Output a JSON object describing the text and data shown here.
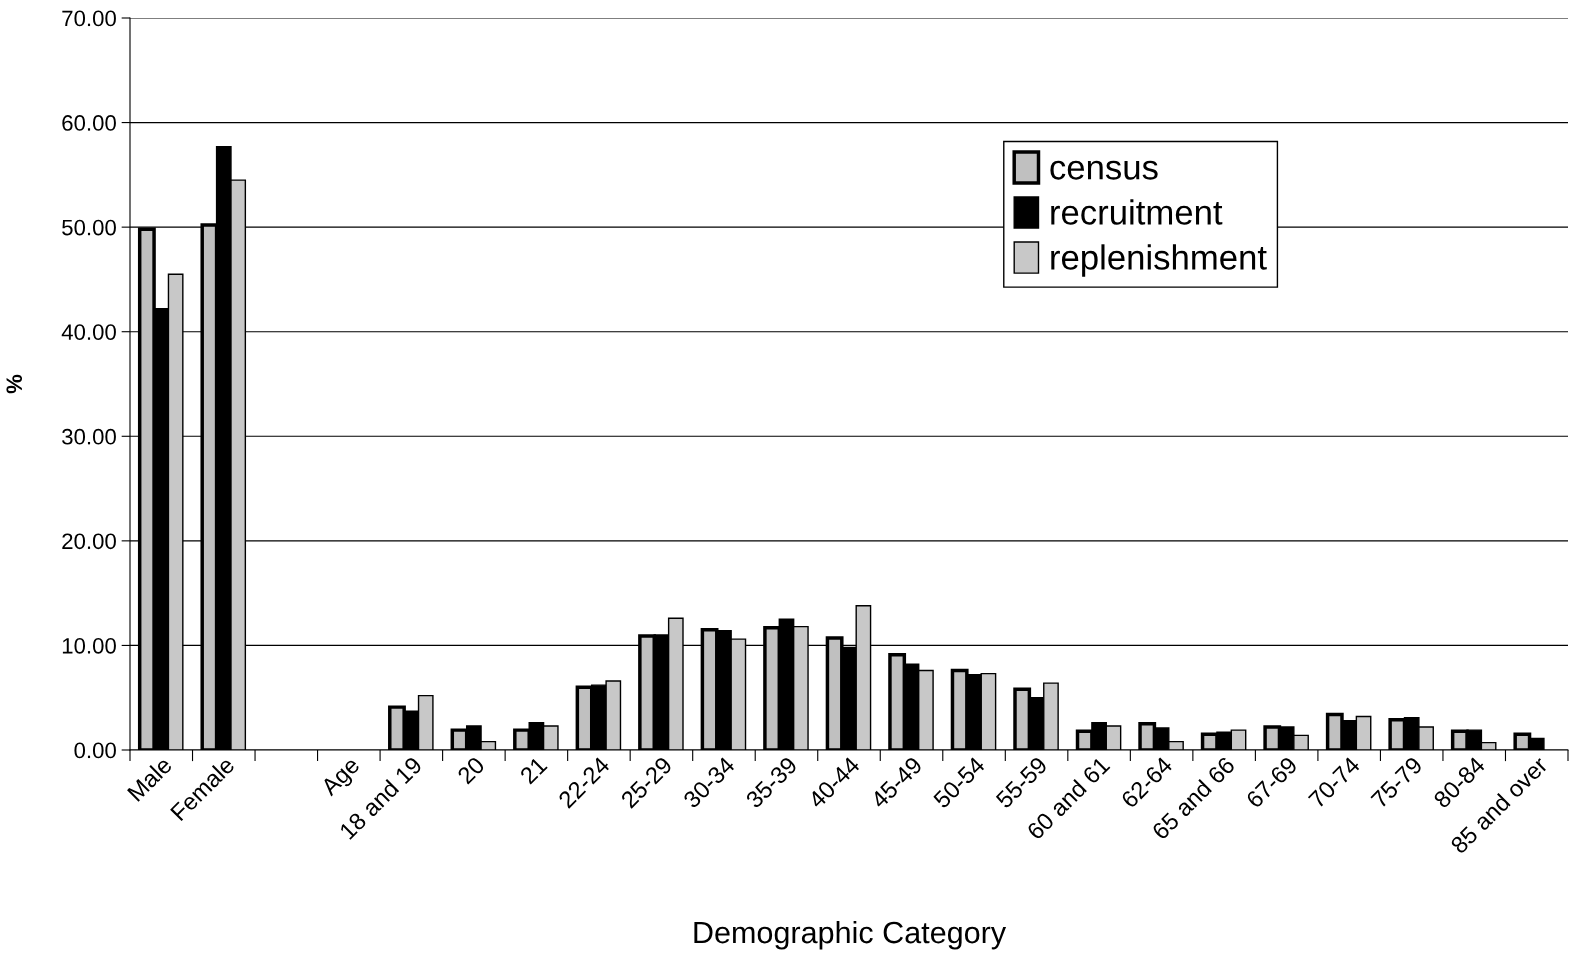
{
  "chart_data": {
    "type": "bar",
    "xlabel": "Demographic Category",
    "ylabel": "%",
    "categories": [
      "Male",
      "Female",
      null,
      "Age",
      "18 and 19",
      "20",
      "21",
      "22-24",
      "25-29",
      "30-34",
      "35-39",
      "40-44",
      "45-49",
      "50-54",
      "55-59",
      "60 and 61",
      "62-64",
      "65 and 66",
      "67-69",
      "70-74",
      "75-79",
      "80-84",
      "85 and over"
    ],
    "series": [
      {
        "name": "census",
        "color": "#c0c0c0",
        "values": [
          49.8,
          50.2,
          null,
          null,
          4.1,
          1.9,
          1.9,
          6.0,
          10.9,
          11.5,
          11.7,
          10.7,
          9.1,
          7.6,
          5.8,
          1.8,
          2.5,
          1.5,
          2.2,
          3.4,
          2.9,
          1.8,
          1.5
        ]
      },
      {
        "name": "recruitment",
        "color": "#000000",
        "values": [
          42.2,
          57.7,
          null,
          null,
          3.7,
          2.3,
          2.6,
          6.2,
          11.0,
          11.4,
          12.5,
          9.8,
          8.2,
          7.2,
          5.0,
          2.6,
          2.1,
          1.7,
          2.2,
          2.8,
          3.1,
          1.9,
          1.1
        ]
      },
      {
        "name": "replenishment",
        "color": "#c8c8c8",
        "values": [
          45.5,
          54.5,
          null,
          null,
          5.2,
          0.8,
          2.3,
          6.6,
          12.6,
          10.6,
          11.8,
          13.8,
          7.6,
          7.3,
          6.4,
          2.3,
          0.8,
          1.9,
          1.4,
          3.2,
          2.2,
          0.7,
          null
        ]
      }
    ],
    "ylim": [
      0,
      70
    ],
    "yticks": [
      {
        "value": 0,
        "label": "0.00"
      },
      {
        "value": 10,
        "label": "10.00"
      },
      {
        "value": 20,
        "label": "20.00"
      },
      {
        "value": 30,
        "label": "30.00"
      },
      {
        "value": 40,
        "label": "40.00"
      },
      {
        "value": 50,
        "label": "50.00"
      },
      {
        "value": 60,
        "label": "60.00"
      },
      {
        "value": 70,
        "label": "70.00"
      }
    ],
    "grid": "y",
    "legend": "top right"
  }
}
